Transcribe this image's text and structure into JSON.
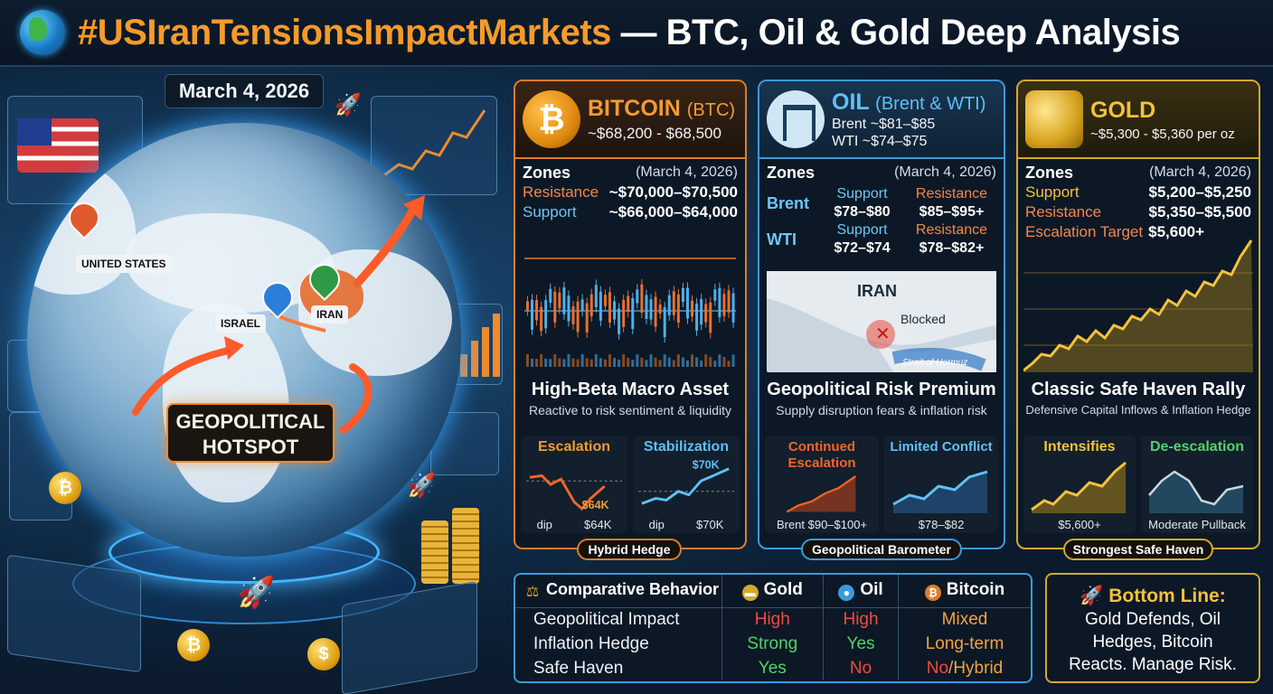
{
  "header": {
    "hashtag": "#USIranTensionsImpactMarkets",
    "title_rest": " — BTC, Oil & Gold Deep Analysis"
  },
  "left": {
    "date": "March 4, 2026",
    "labels": {
      "us": "UNITED STATES",
      "israel": "ISRAEL",
      "iran": "IRAN"
    },
    "hotspot_line1": "GEOPOLITICAL",
    "hotspot_line2": "HOTSPOT"
  },
  "btc": {
    "name": "BITCOIN",
    "ticker": "(BTC)",
    "price": "~$68,200 - $68,500",
    "zones_label": "Zones",
    "zones_date": "(March 4, 2026)",
    "resistance_label": "Resistance",
    "resistance": "~$70,000–$70,500",
    "support_label": "Support",
    "support": "~$66,000–$64,000",
    "caption_title": "High-Beta Macro Asset",
    "caption_sub": "Reactive to risk sentiment & liquidity",
    "scenario1": {
      "title": "Escalation",
      "mark": "$64K",
      "foot_left": "dip",
      "foot_right": "$64K"
    },
    "scenario2": {
      "title": "Stabilization",
      "mark": "$70K",
      "foot_left": "dip",
      "foot_right": "$70K"
    },
    "ribbon": "Hybrid Hedge"
  },
  "oil": {
    "name": "OIL",
    "sub": "(Brent & WTI)",
    "price_brent": "Brent ~$81–$85",
    "price_wti": "WTI ~$74–$75",
    "zones_label": "Zones",
    "zones_date": "(March 4, 2026)",
    "brent_label": "Brent",
    "wti_label": "WTI",
    "support_label": "Support",
    "resistance_label": "Resistance",
    "brent_support": "$78–$80",
    "brent_resistance": "$85–$95+",
    "wti_support": "$72–$74",
    "wti_resistance": "$78–$82+",
    "map_country": "IRAN",
    "map_blocked": "Blocked",
    "map_strait": "Strait of Hormuz",
    "caption_title": "Geopolitical Risk Premium",
    "caption_sub": "Supply disruption fears & inflation risk",
    "scenario1": {
      "title": "Continued Escalation",
      "foot": "Brent $90–$100+"
    },
    "scenario2": {
      "title": "Limited Conflict",
      "foot": "$78–$82"
    },
    "ribbon": "Geopolitical Barometer"
  },
  "gold": {
    "name": "GOLD",
    "price": "~$5,300 - $5,360 per oz",
    "zones_label": "Zones",
    "zones_date": "(March 4, 2026)",
    "support_label": "Support",
    "support": "$5,200–$5,250",
    "resistance_label": "Resistance",
    "resistance": "$5,350–$5,500",
    "target_label": "Escalation Target",
    "target": "$5,600+",
    "caption_title": "Classic Safe Haven Rally",
    "caption_sub": "Defensive Capital Inflows & Inflation Hedge",
    "scenario1": {
      "title": "Intensifies",
      "foot": "$5,600+"
    },
    "scenario2": {
      "title": "De-escalation",
      "foot": "Moderate Pullback"
    },
    "ribbon": "Strongest Safe Haven"
  },
  "comparison": {
    "title": "Comparative Behavior",
    "cols": [
      "Gold",
      "Oil",
      "Bitcoin"
    ],
    "rows": [
      {
        "label": "Geopolitical Impact",
        "gold": "High",
        "oil": "High",
        "btc": "Mixed"
      },
      {
        "label": "Inflation Hedge",
        "gold": "Strong",
        "oil": "Yes",
        "btc": "Long-term"
      },
      {
        "label": "Safe Haven",
        "gold": "Yes",
        "oil": "No",
        "btc_a": "No",
        "btc_b": "/Hybrid"
      }
    ]
  },
  "bottom_line": {
    "title": "Bottom Line:",
    "line1": "Gold Defends, Oil",
    "line2": "Hedges, Bitcoin",
    "line3": "Reacts. Manage Risk."
  },
  "colors": {
    "btc": "#e07b29",
    "oil": "#3b9bd8",
    "gold": "#d4a82e"
  },
  "icons": [
    "globe-icon",
    "bitcoin-icon",
    "oil-pump-icon",
    "gold-bars-icon",
    "scales-icon",
    "rocket-icon"
  ]
}
